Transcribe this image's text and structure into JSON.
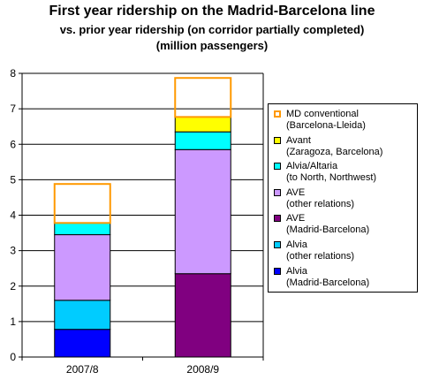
{
  "chart_data": {
    "type": "bar",
    "stacked": true,
    "title": "First year ridership on the Madrid-Barcelona line",
    "subtitle": "vs. prior year ridership (on corridor partially completed)",
    "subtitle2": "(million passengers)",
    "categories": [
      "2007/8",
      "2008/9"
    ],
    "ylim": [
      0,
      8
    ],
    "yticks": [
      "0",
      "1",
      "2",
      "3",
      "4",
      "5",
      "6",
      "7",
      "8"
    ],
    "grid": true,
    "legend_position": "right",
    "series": [
      {
        "name": "Alvia",
        "name2": "(Madrid-Barcelona)",
        "color": "#0000ff",
        "outline": false,
        "values": [
          0.78,
          0
        ]
      },
      {
        "name": "Alvia",
        "name2": "(other relations)",
        "color": "#00ccff",
        "outline": false,
        "values": [
          0.82,
          0
        ]
      },
      {
        "name": "AVE",
        "name2": "(Madrid-Barcelona)",
        "color": "#800080",
        "outline": false,
        "values": [
          0,
          2.35
        ]
      },
      {
        "name": "AVE",
        "name2": "(other relations)",
        "color": "#cc99ff",
        "outline": false,
        "values": [
          1.85,
          3.5
        ]
      },
      {
        "name": "Alvia/Altaria",
        "name2": "(to North, Northwest)",
        "color": "#00ffff",
        "outline": false,
        "values": [
          0.33,
          0.5
        ]
      },
      {
        "name": "Avant",
        "name2": "(Zaragoza, Barcelona)",
        "color": "#ffff00",
        "outline": false,
        "values": [
          0,
          0.42
        ]
      },
      {
        "name": "MD conventional",
        "name2": "(Barcelona-Lleida)",
        "color": "#ff9900",
        "outline": true,
        "values": [
          1.1,
          1.1
        ]
      }
    ]
  }
}
